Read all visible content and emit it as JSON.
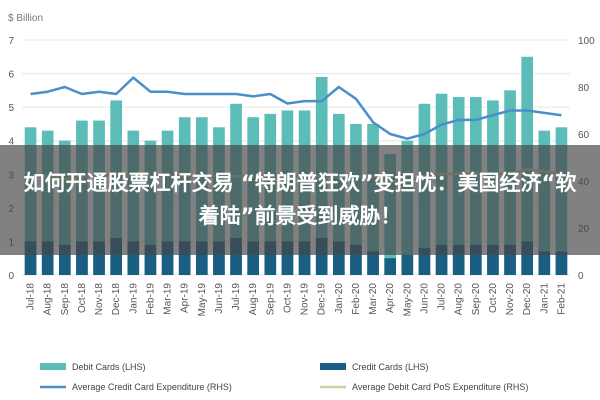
{
  "overlay_title": "如何开通股票杠杆交易 “特朗普狂欢”变担忧：美国经济“软着陆”前景受到威胁！",
  "colors": {
    "debit": "#5bbcb8",
    "credit": "#1a5e82",
    "credit_line": "#4a8fc9",
    "debit_line": "#c8cfa3",
    "grid": "#e6e6e6",
    "axis_text": "#555555"
  },
  "chart_data": {
    "type": "bar",
    "ylabel_left": "$ Billion",
    "ylim_left": [
      0,
      7
    ],
    "yticks_left": [
      "0",
      "1",
      "2",
      "3",
      "4",
      "5",
      "6",
      "7"
    ],
    "ylim_right": [
      0,
      100
    ],
    "yticks_right": [
      "0",
      "20",
      "40",
      "60",
      "80",
      "100"
    ],
    "grid": true,
    "legend_position": "bottom",
    "categories": [
      "Jul-18",
      "Aug-18",
      "Sep-18",
      "Oct-18",
      "Nov-18",
      "Dec-18",
      "Jan-19",
      "Feb-19",
      "Mar-19",
      "Apr-19",
      "May-19",
      "Jun-19",
      "Jul-19",
      "Aug-19",
      "Sep-19",
      "Oct-19",
      "Nov-19",
      "Dec-19",
      "Jan-20",
      "Feb-20",
      "Mar-20",
      "Apr-20",
      "May-20",
      "Jun-20",
      "Jul-20",
      "Aug-20",
      "Sep-20",
      "Oct-20",
      "Nov-20",
      "Dec-20",
      "Jan-21",
      "Feb-21"
    ],
    "series": [
      {
        "name": "Debit Cards (LHS)",
        "kind": "bar",
        "axis": "left",
        "values": [
          4.4,
          4.3,
          4.0,
          4.6,
          4.6,
          5.2,
          4.3,
          4.0,
          4.3,
          4.7,
          4.7,
          4.4,
          5.1,
          4.7,
          4.8,
          4.9,
          4.9,
          5.9,
          4.8,
          4.5,
          4.5,
          3.6,
          4.0,
          5.1,
          5.4,
          5.3,
          5.3,
          5.2,
          5.5,
          6.5,
          4.3,
          4.4
        ]
      },
      {
        "name": "Credit Cards (LHS)",
        "kind": "bar",
        "axis": "left",
        "values": [
          1.0,
          1.0,
          0.9,
          1.0,
          1.0,
          1.1,
          1.0,
          0.9,
          1.0,
          1.0,
          1.0,
          1.0,
          1.1,
          1.0,
          1.0,
          1.0,
          1.0,
          1.1,
          1.0,
          0.9,
          0.7,
          0.5,
          0.6,
          0.8,
          0.9,
          0.9,
          0.9,
          0.9,
          0.9,
          1.0,
          0.7,
          0.7
        ]
      },
      {
        "name": "Average Credit Card Expenditure (RHS)",
        "kind": "line",
        "axis": "right",
        "values": [
          77,
          78,
          80,
          77,
          78,
          77,
          84,
          78,
          78,
          77,
          77,
          77,
          77,
          76,
          77,
          73,
          74,
          74,
          80,
          75,
          65,
          60,
          58,
          60,
          64,
          66,
          66,
          68,
          70,
          70,
          69,
          68
        ]
      },
      {
        "name": "Average Debit Card PoS Expenditure (RHS)",
        "kind": "line",
        "axis": "right",
        "values": [
          42,
          42,
          41,
          42,
          42,
          43,
          42,
          42,
          42,
          42,
          42,
          42,
          42,
          42,
          42,
          42,
          42,
          42,
          42,
          42,
          42,
          40,
          40,
          42,
          43,
          43,
          43,
          43,
          43,
          45,
          44,
          43
        ]
      }
    ]
  }
}
